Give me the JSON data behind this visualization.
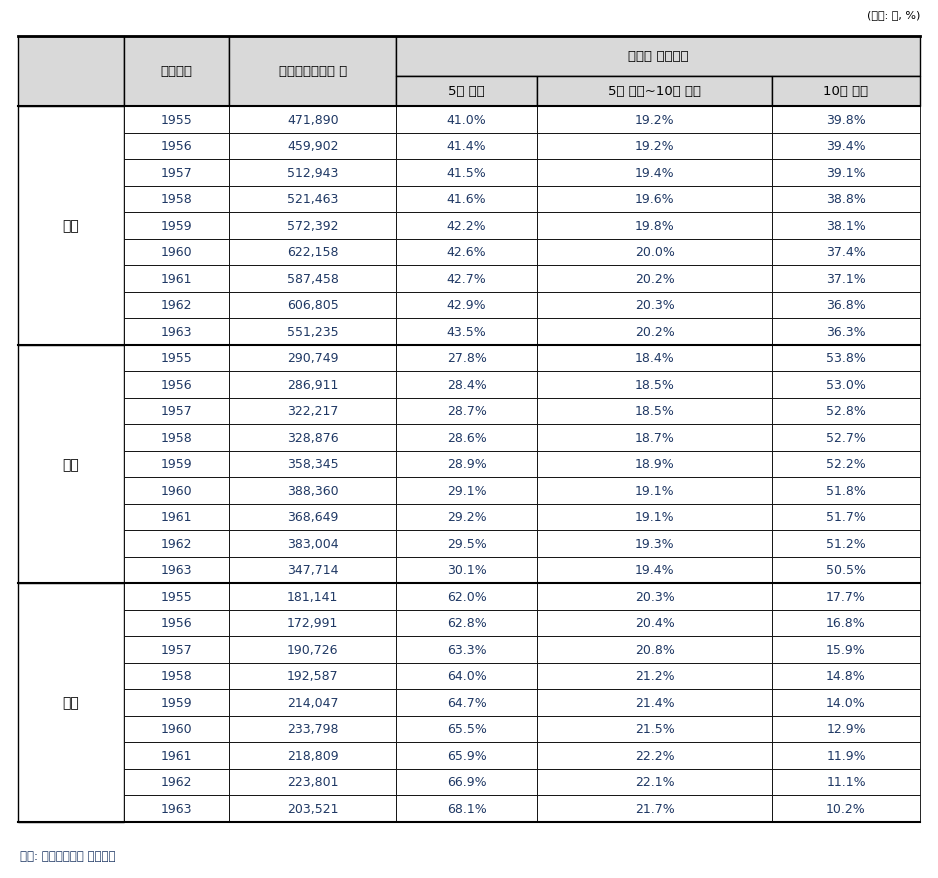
{
  "unit_text": "(단위: 명, %)",
  "source_text": "자료: 국민연금공단 내부자료",
  "col1_header": "출생연도",
  "col2_header": "가입이력보유자 수",
  "col3_header": "보험료 납부기간",
  "col3a_header": "5년 미만",
  "col3b_header": "5년 이상~10년 미만",
  "col3c_header": "10년 이상",
  "groups": [
    {
      "label": "전체",
      "rows": [
        [
          "1955",
          "471,890",
          "41.0%",
          "19.2%",
          "39.8%"
        ],
        [
          "1956",
          "459,902",
          "41.4%",
          "19.2%",
          "39.4%"
        ],
        [
          "1957",
          "512,943",
          "41.5%",
          "19.4%",
          "39.1%"
        ],
        [
          "1958",
          "521,463",
          "41.6%",
          "19.6%",
          "38.8%"
        ],
        [
          "1959",
          "572,392",
          "42.2%",
          "19.8%",
          "38.1%"
        ],
        [
          "1960",
          "622,158",
          "42.6%",
          "20.0%",
          "37.4%"
        ],
        [
          "1961",
          "587,458",
          "42.7%",
          "20.2%",
          "37.1%"
        ],
        [
          "1962",
          "606,805",
          "42.9%",
          "20.3%",
          "36.8%"
        ],
        [
          "1963",
          "551,235",
          "43.5%",
          "20.2%",
          "36.3%"
        ]
      ]
    },
    {
      "label": "남자",
      "rows": [
        [
          "1955",
          "290,749",
          "27.8%",
          "18.4%",
          "53.8%"
        ],
        [
          "1956",
          "286,911",
          "28.4%",
          "18.5%",
          "53.0%"
        ],
        [
          "1957",
          "322,217",
          "28.7%",
          "18.5%",
          "52.8%"
        ],
        [
          "1958",
          "328,876",
          "28.6%",
          "18.7%",
          "52.7%"
        ],
        [
          "1959",
          "358,345",
          "28.9%",
          "18.9%",
          "52.2%"
        ],
        [
          "1960",
          "388,360",
          "29.1%",
          "19.1%",
          "51.8%"
        ],
        [
          "1961",
          "368,649",
          "29.2%",
          "19.1%",
          "51.7%"
        ],
        [
          "1962",
          "383,004",
          "29.5%",
          "19.3%",
          "51.2%"
        ],
        [
          "1963",
          "347,714",
          "30.1%",
          "19.4%",
          "50.5%"
        ]
      ]
    },
    {
      "label": "여자",
      "rows": [
        [
          "1955",
          "181,141",
          "62.0%",
          "20.3%",
          "17.7%"
        ],
        [
          "1956",
          "172,991",
          "62.8%",
          "20.4%",
          "16.8%"
        ],
        [
          "1957",
          "190,726",
          "63.3%",
          "20.8%",
          "15.9%"
        ],
        [
          "1958",
          "192,587",
          "64.0%",
          "21.2%",
          "14.8%"
        ],
        [
          "1959",
          "214,047",
          "64.7%",
          "21.4%",
          "14.0%"
        ],
        [
          "1960",
          "233,798",
          "65.5%",
          "21.5%",
          "12.9%"
        ],
        [
          "1961",
          "218,809",
          "65.9%",
          "22.2%",
          "11.9%"
        ],
        [
          "1962",
          "223,801",
          "66.9%",
          "22.1%",
          "11.1%"
        ],
        [
          "1963",
          "203,521",
          "68.1%",
          "21.7%",
          "10.2%"
        ]
      ]
    }
  ],
  "header_bg": "#d9d9d9",
  "white": "#ffffff",
  "border_color": "#000000",
  "text_color": "#000000",
  "blue_text": "#1f3864",
  "source_color": "#1f3864",
  "fig_width": 9.38,
  "fig_height": 8.79,
  "dpi": 100
}
